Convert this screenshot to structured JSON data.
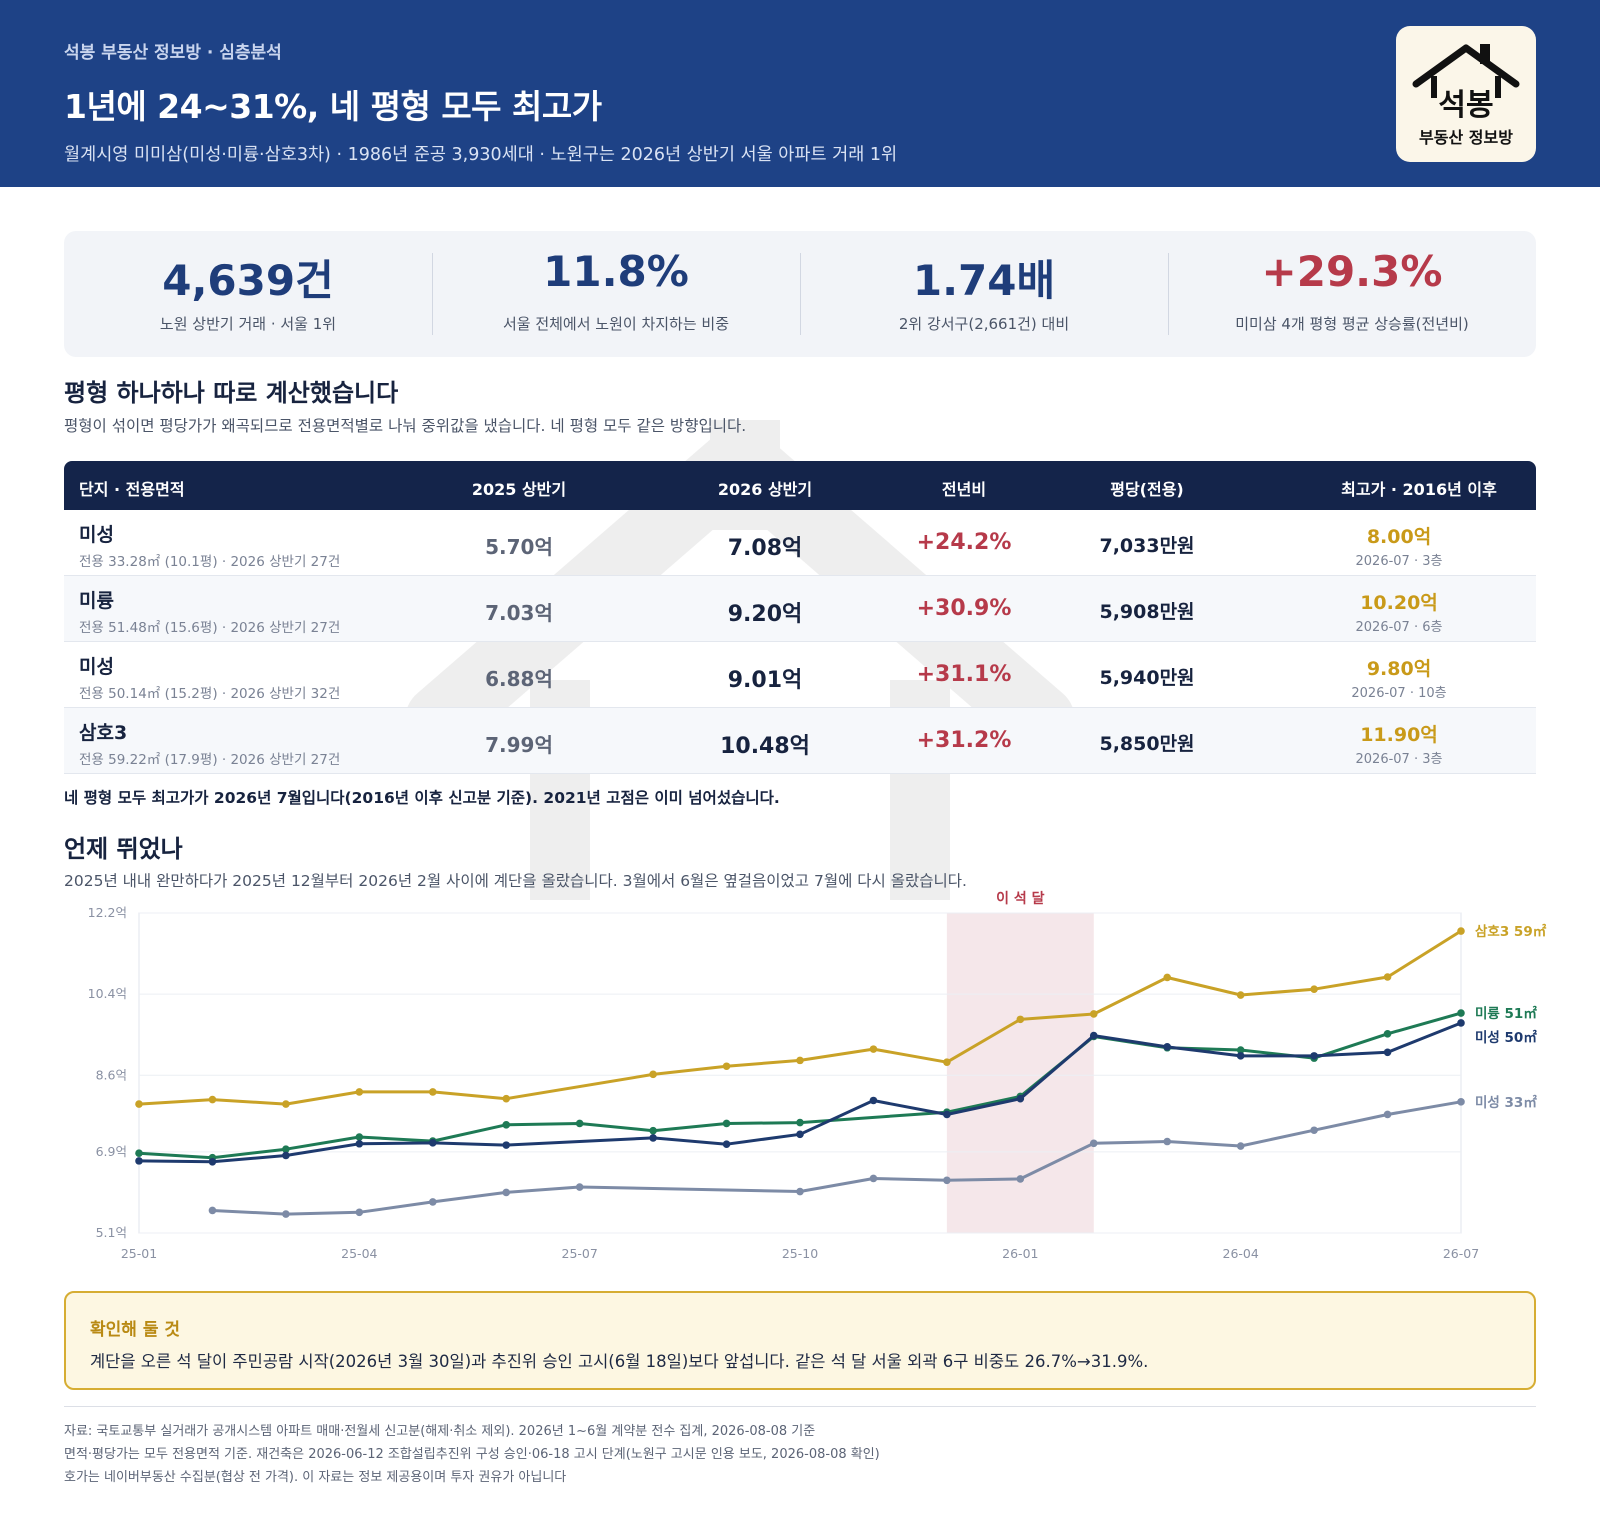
{
  "header": {
    "kicker": "석봉 부동산 정보방 · 심층분석",
    "title": "1년에 24~31%, 네 평형 모두 최고가",
    "subtitle": "월계시영 미미삼(미성·미륭·삼호3차) · 1986년 준공 3,930세대 · 노원구는 2026년 상반기 서울 아파트 거래 1위"
  },
  "logo": {
    "name": "석봉",
    "sub": "부동산 정보방",
    "icon": "house-roof-icon"
  },
  "stats": [
    {
      "value": "4,639건",
      "label": "노원 상반기 거래 · 서울 1위"
    },
    {
      "value": "11.8%",
      "label": "서울 전체에서 노원이 차지하는 비중"
    },
    {
      "value": "1.74배",
      "label": "2위 강서구(2,661건) 대비"
    },
    {
      "value": "+29.3%",
      "label": "미미삼 4개 평형 평균 상승률(전년비)"
    }
  ],
  "colors": {
    "navy": "#1e4286",
    "red": "#b63a4a",
    "gold": "#c9a227",
    "green": "#1e7a55",
    "slate": "#7d8ba6",
    "band": "#f2dfe3"
  },
  "section1": {
    "title": "평형 하나하나 따로 계산했습니다",
    "desc": "평형이 섞이면 평당가가 왜곡되므로 전용면적별로 나눠 중위값을 냈습니다. 네 평형 모두 같은 방향입니다."
  },
  "table": {
    "headers": [
      "단지 · 전용면적",
      "2025 상반기",
      "2026 상반기",
      "전년비",
      "평당(전용)",
      "최고가 · 2016년 이후"
    ],
    "rows": [
      {
        "name": "미성",
        "sub": "전용 33.28㎡ (10.1평) · 2026 상반기 27건",
        "h2025": "5.70억",
        "h2026": "7.08억",
        "yoy": "+24.2%",
        "pyeong": "7,033만원",
        "high": "8.00억",
        "high_date": "2026-07 · 3층"
      },
      {
        "name": "미륭",
        "sub": "전용 51.48㎡ (15.6평) · 2026 상반기 27건",
        "h2025": "7.03억",
        "h2026": "9.20억",
        "yoy": "+30.9%",
        "pyeong": "5,908만원",
        "high": "10.20억",
        "high_date": "2026-07 · 6층"
      },
      {
        "name": "미성",
        "sub": "전용 50.14㎡ (15.2평) · 2026 상반기 32건",
        "h2025": "6.88억",
        "h2026": "9.01억",
        "yoy": "+31.1%",
        "pyeong": "5,940만원",
        "high": "9.80억",
        "high_date": "2026-07 · 10층"
      },
      {
        "name": "삼호3",
        "sub": "전용 59.22㎡ (17.9평) · 2026 상반기 27건",
        "h2025": "7.99억",
        "h2026": "10.48억",
        "yoy": "+31.2%",
        "pyeong": "5,850만원",
        "high": "11.90억",
        "high_date": "2026-07 · 3층"
      }
    ],
    "note": "네 평형 모두 최고가가 2026년 7월입니다(2016년 이후 신고분 기준). 2021년 고점은 이미 넘어섰습니다."
  },
  "section2": {
    "title": "언제 뛰었나",
    "desc": "2025년 내내 완만하다가 2025년 12월부터 2026년 2월 사이에 계단을 올랐습니다. 3월에서 6월은 옆걸음이었고 7월에 다시 올랐습니다."
  },
  "chart_data": {
    "type": "line",
    "x": [
      "25-01",
      "25-02",
      "25-03",
      "25-04",
      "25-05",
      "25-06",
      "25-07",
      "25-08",
      "25-09",
      "25-10",
      "25-11",
      "25-12",
      "26-01",
      "26-02",
      "26-03",
      "26-04",
      "26-05",
      "26-06",
      "26-07"
    ],
    "x_ticks": [
      "25-01",
      "25-04",
      "25-07",
      "25-10",
      "26-01",
      "26-04",
      "26-07"
    ],
    "y_ticks": [
      "5.1억",
      "6.9억",
      "8.6억",
      "10.4억",
      "12.2억"
    ],
    "y_tick_values": [
      5.1,
      6.9,
      8.6,
      10.4,
      12.2
    ],
    "ylim": [
      5.1,
      12.2
    ],
    "highlight": {
      "label": "이 석 달",
      "from": "25-12",
      "to": "26-02"
    },
    "grid": true,
    "legend": "line-end labels",
    "series": [
      {
        "name": "삼호3 59㎡",
        "color": "#c9a227",
        "values": [
          7.96,
          8.06,
          7.96,
          8.23,
          8.23,
          8.08,
          null,
          8.62,
          8.8,
          8.93,
          9.18,
          8.89,
          9.84,
          9.96,
          10.77,
          10.38,
          10.51,
          10.78,
          11.8
        ]
      },
      {
        "name": "미륭 51㎡",
        "color": "#1e7a55",
        "values": [
          6.87,
          6.77,
          6.96,
          7.23,
          7.14,
          7.5,
          7.53,
          7.37,
          7.53,
          7.55,
          null,
          7.78,
          8.13,
          9.46,
          9.21,
          9.16,
          8.98,
          9.52,
          9.98
        ]
      },
      {
        "name": "미성 50㎡",
        "color": "#1e3a6e",
        "values": [
          6.7,
          6.68,
          6.82,
          7.08,
          7.1,
          7.05,
          null,
          7.21,
          7.07,
          7.29,
          8.04,
          7.73,
          8.08,
          9.48,
          9.23,
          9.03,
          9.03,
          9.11,
          9.76
        ]
      },
      {
        "name": "미성 33㎡",
        "color": "#7d8ba6",
        "values": [
          null,
          5.6,
          5.52,
          5.56,
          5.79,
          6.0,
          6.12,
          null,
          null,
          6.02,
          6.31,
          6.27,
          6.3,
          7.09,
          7.13,
          7.03,
          7.38,
          7.73,
          8.01
        ]
      }
    ]
  },
  "callout": {
    "title": "확인해 둘 것",
    "body": "계단을 오른 석 달이 주민공람 시작(2026년 3월 30일)과 추진위 승인 고시(6월 18일)보다 앞섭니다. 같은 석 달 서울 외곽 6구 비중도 26.7%→31.9%."
  },
  "footer": [
    "자료: 국토교통부 실거래가 공개시스템 아파트 매매·전월세 신고분(해제·취소 제외). 2026년 1~6월 계약분 전수 집계, 2026-08-08 기준",
    "면적·평당가는 모두 전용면적 기준. 재건축은 2026-06-12 조합설립추진위 구성 승인·06-18 고시 단계(노원구 고시문 인용 보도, 2026-08-08 확인)",
    "호가는 네이버부동산 수집분(협상 전 가격). 이 자료는 정보 제공용이며 투자 권유가 아닙니다"
  ]
}
